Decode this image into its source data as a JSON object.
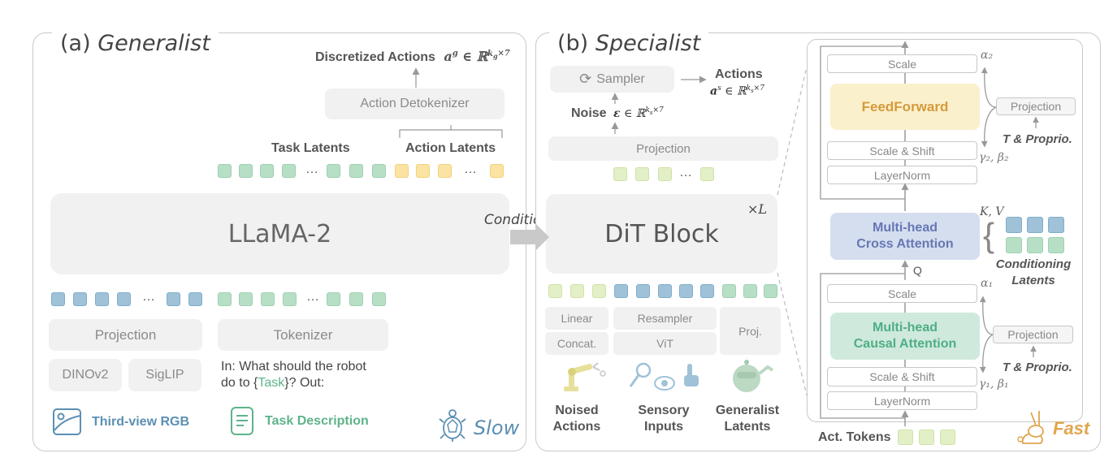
{
  "colors": {
    "border": "#c9c9c9",
    "box_gray": "#f1f1f1",
    "token_green": "#b7dfc6",
    "token_yellow": "#fbe3a3",
    "token_blue": "#9fc2d8",
    "token_lightgreen": "#e3efc7",
    "feedforward_bg": "#fbf0cc",
    "cross_attention_bg": "#d5deef",
    "causal_attention_bg": "#cfe9dd",
    "rgb_blue": "#5b8fb3",
    "task_green": "#5fb38a",
    "fast_orange": "#e0a64f"
  },
  "generalist": {
    "title_prefix": "(a)",
    "title": "Generalist",
    "output_label": "Discretized Actions",
    "output_math": "a^g ∈ ℝ^{k_g×7}",
    "detokenizer": "Action Detokenizer",
    "task_latents": "Task Latents",
    "action_latents": "Action Latents",
    "backbone": "LLaMA-2",
    "projection": "Projection",
    "tokenizer": "Tokenizer",
    "dinov2": "DINOv2",
    "siglip": "SigLIP",
    "prompt_in": "In:",
    "prompt_text_1": " What should the robot",
    "prompt_text_2": "do to {",
    "prompt_task": "Task",
    "prompt_text_3": "}? Out:",
    "rgb_label": "Third-view RGB",
    "task_label": "Task Description",
    "speed_label": "Slow",
    "ellipsis": "…"
  },
  "conditioning_label": "Conditioning",
  "specialist": {
    "title_prefix": "(b)",
    "title": "Specialist",
    "sampler": "Sampler",
    "actions_label": "Actions",
    "actions_math": "a^s ∈ ℝ^{k_s×7}",
    "noise_label": "Noise",
    "noise_math": "ε ∈ ℝ^{k_s×7}",
    "projection": "Projection",
    "block": "DiT Block",
    "repeat": "×L",
    "linear": "Linear",
    "concat": "Concat.",
    "resampler": "Resampler",
    "vit": "ViT",
    "proj": "Proj.",
    "noised_actions": "Noised\nActions",
    "sensory_inputs": "Sensory\nInputs",
    "generalist_latents": "Generalist\nLatents",
    "ellipsis": "…"
  },
  "dit": {
    "scale_top": "Scale",
    "alpha2": "α₂",
    "feedforward": "FeedForward",
    "projection_top": "Projection",
    "t_proprio_top": "T & Proprio.",
    "scale_shift_top": "Scale & Shift",
    "gamma_beta_2": "γ₂, β₂",
    "layernorm_top": "LayerNorm",
    "kv": "K, V",
    "cross_attention": "Multi-head\nCross Attention",
    "conditioning_latents": "Conditioning\nLatents",
    "q": "Q",
    "scale_bottom": "Scale",
    "alpha1": "α₁",
    "causal_attention": "Multi-head\nCausal Attention",
    "projection_bottom": "Projection",
    "t_proprio_bottom": "T & Proprio.",
    "scale_shift_bottom": "Scale & Shift",
    "gamma_beta_1": "γ₁, β₁",
    "layernorm_bottom": "LayerNorm",
    "act_tokens": "Act. Tokens",
    "speed_label": "Fast"
  }
}
